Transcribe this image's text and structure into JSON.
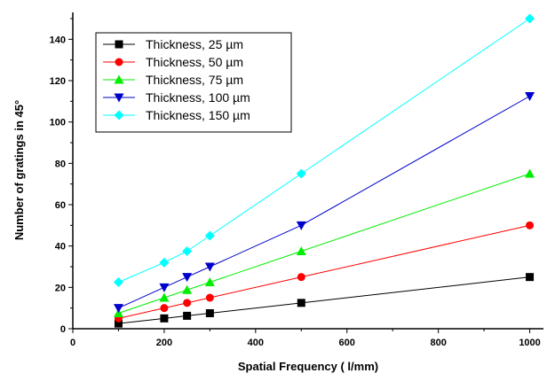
{
  "chart_data": {
    "type": "line",
    "title": "",
    "xlabel": "Spatial Frequency ( l/mm)",
    "ylabel": "Number of gratings in 45°",
    "xlim": [
      0,
      1030
    ],
    "ylim": [
      0,
      153
    ],
    "x_ticks": [
      0,
      200,
      400,
      600,
      800,
      1000
    ],
    "y_ticks": [
      0,
      20,
      40,
      60,
      80,
      100,
      120,
      140
    ],
    "grid": false,
    "legend_position": "top-left",
    "x": [
      100,
      200,
      250,
      300,
      500,
      1000
    ],
    "series": [
      {
        "name": "Thickness, 25 µm",
        "color": "#000000",
        "marker": "square",
        "values": [
          2.5,
          5,
          6.25,
          7.5,
          12.5,
          25
        ]
      },
      {
        "name": "Thickness, 50 µm",
        "color": "#ff0000",
        "marker": "circle",
        "values": [
          5,
          10,
          12.5,
          15,
          25,
          50
        ]
      },
      {
        "name": "Thickness, 75 µm",
        "color": "#00ee00",
        "marker": "triangle-up",
        "values": [
          7.5,
          15,
          18.75,
          22.5,
          37.5,
          75
        ]
      },
      {
        "name": "Thickness, 100 µm",
        "color": "#0000cc",
        "marker": "triangle-down",
        "values": [
          10,
          20,
          25,
          30,
          50,
          112.5
        ]
      },
      {
        "name": "Thickness, 150 µm",
        "color": "#00ffff",
        "marker": "diamond",
        "values": [
          22.5,
          32,
          37.5,
          45,
          75,
          150
        ]
      }
    ]
  }
}
